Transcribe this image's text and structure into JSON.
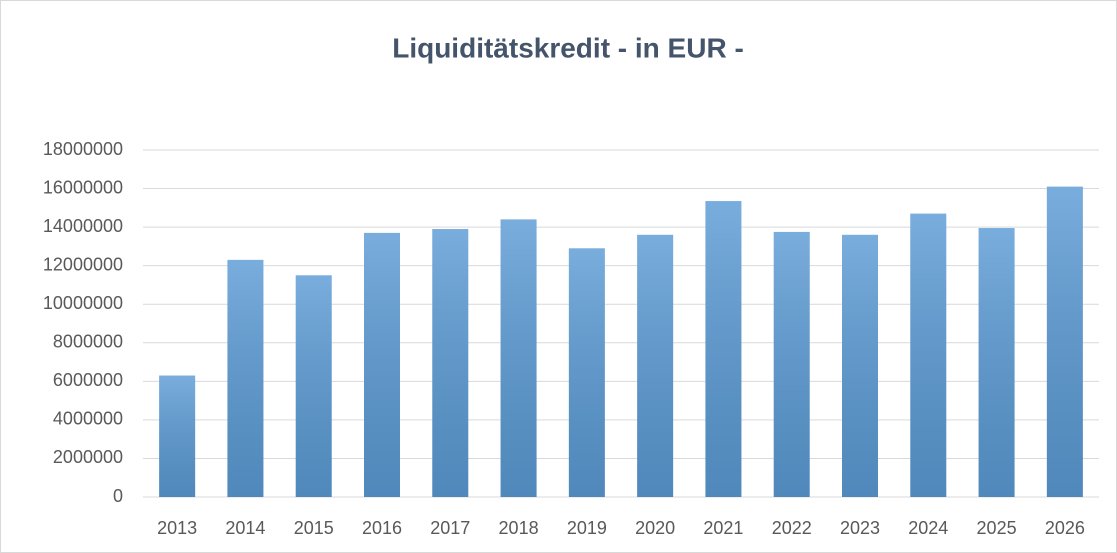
{
  "chart_data": {
    "type": "bar",
    "title": "Liquiditätskredit - in EUR -",
    "categories": [
      "2013",
      "2014",
      "2015",
      "2016",
      "2017",
      "2018",
      "2019",
      "2020",
      "2021",
      "2022",
      "2023",
      "2024",
      "2025",
      "2026"
    ],
    "values": [
      6300000,
      12300000,
      11500000,
      13700000,
      13900000,
      14400000,
      12900000,
      13600000,
      15350000,
      13750000,
      13600000,
      14700000,
      13950000,
      16100000
    ],
    "color": "#5b9bd5",
    "ylim": [
      0,
      18000000
    ],
    "yticks": [
      0,
      2000000,
      4000000,
      6000000,
      8000000,
      10000000,
      12000000,
      14000000,
      16000000,
      18000000
    ],
    "grid": true
  }
}
